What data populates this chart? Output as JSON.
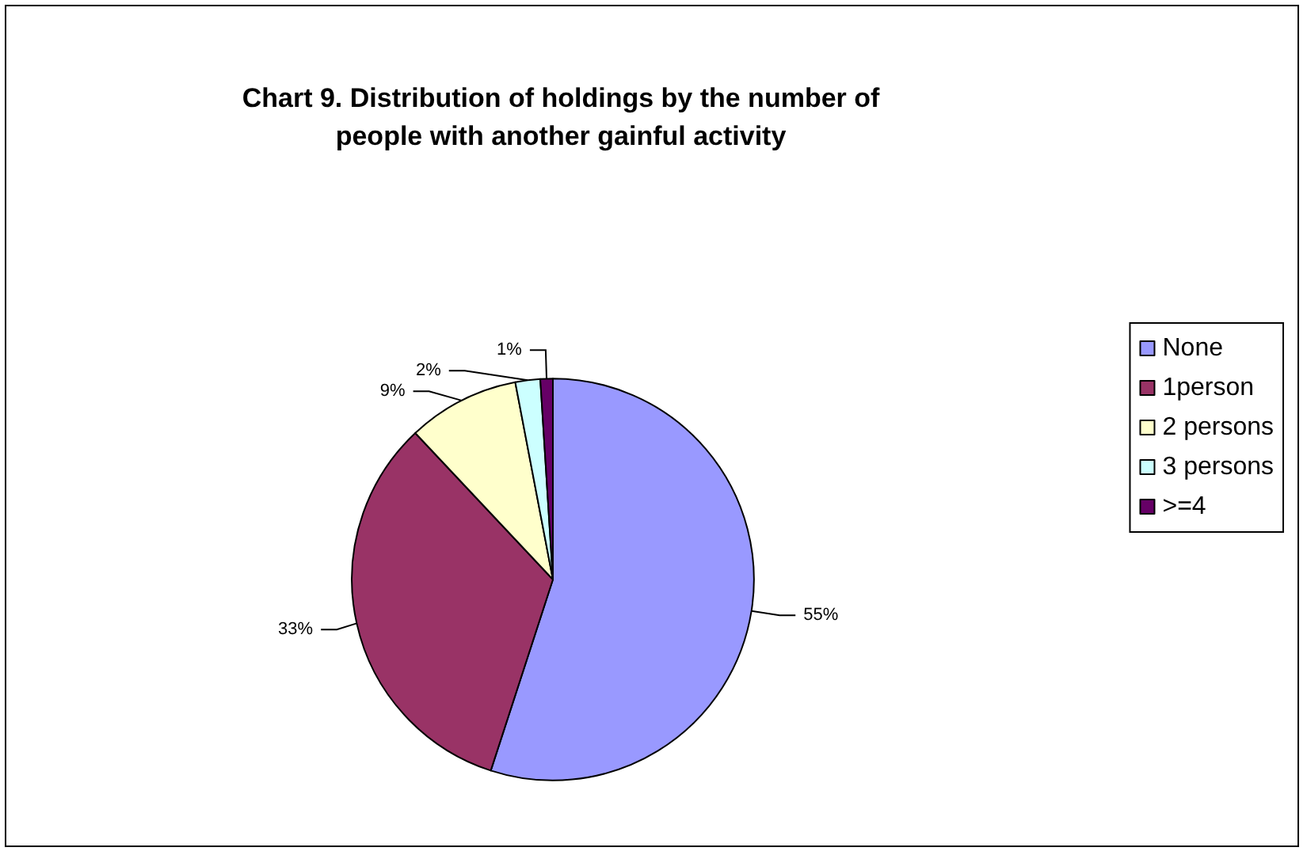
{
  "chart_data": {
    "type": "pie",
    "title": "Chart 9. Distribution of holdings by the number of\npeople with another gainful activity",
    "categories": [
      "None",
      "1person",
      "2 persons",
      "3 persons",
      ">=4"
    ],
    "values": [
      55,
      33,
      9,
      2,
      1
    ],
    "colors": [
      "#9999ff",
      "#993366",
      "#ffffcc",
      "#ccffff",
      "#660066"
    ],
    "value_labels": [
      "55%",
      "33%",
      "9%",
      "2%",
      "1%"
    ],
    "legend": "right"
  }
}
